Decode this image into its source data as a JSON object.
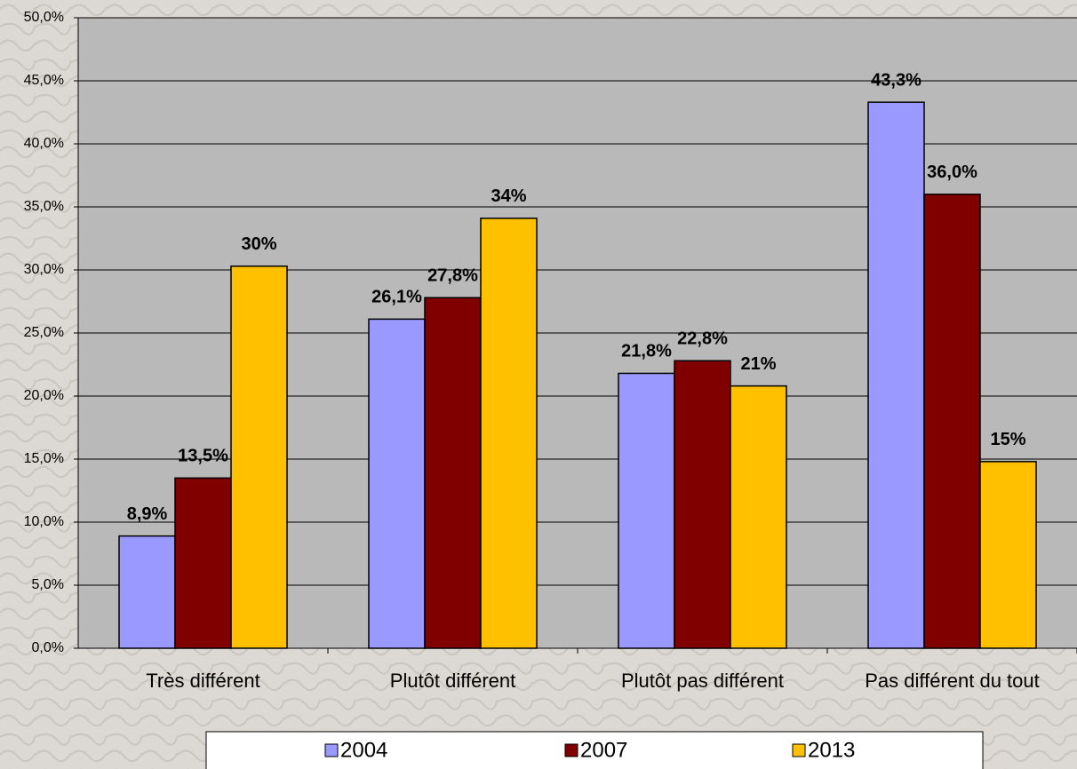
{
  "chart_data": {
    "type": "bar",
    "categories": [
      "Très différent",
      "Plutôt différent",
      "Plutôt pas différent",
      "Pas différent du tout"
    ],
    "series": [
      {
        "name": "2004",
        "color": "#9999ff",
        "values": [
          8.9,
          26.1,
          21.8,
          43.3
        ],
        "value_labels": [
          "8,9%",
          "26,1%",
          "21,8%",
          "43,3%"
        ]
      },
      {
        "name": "2007",
        "color": "#800000",
        "values": [
          13.5,
          27.8,
          22.8,
          36.0
        ],
        "value_labels": [
          "13,5%",
          "27,8%",
          "22,8%",
          "36,0%"
        ]
      },
      {
        "name": "2013",
        "color": "#ffc000",
        "values": [
          30.3,
          34.1,
          20.8,
          14.8
        ],
        "value_labels": [
          "30%",
          "34%",
          "21%",
          "15%"
        ]
      }
    ],
    "ylim": [
      0,
      50
    ],
    "yticks": [
      {
        "value": 0,
        "label": "0,0%"
      },
      {
        "value": 5,
        "label": "5,0%"
      },
      {
        "value": 10,
        "label": "10,0%"
      },
      {
        "value": 15,
        "label": "15,0%"
      },
      {
        "value": 20,
        "label": "20,0%"
      },
      {
        "value": 25,
        "label": "25,0%"
      },
      {
        "value": 30,
        "label": "30,0%"
      },
      {
        "value": 35,
        "label": "35,0%"
      },
      {
        "value": 40,
        "label": "40,0%"
      },
      {
        "value": 45,
        "label": "45,0%"
      },
      {
        "value": 50,
        "label": "50,0%"
      }
    ],
    "grid": true,
    "plot_background": "#b9b9b9",
    "legend": "bottom"
  }
}
